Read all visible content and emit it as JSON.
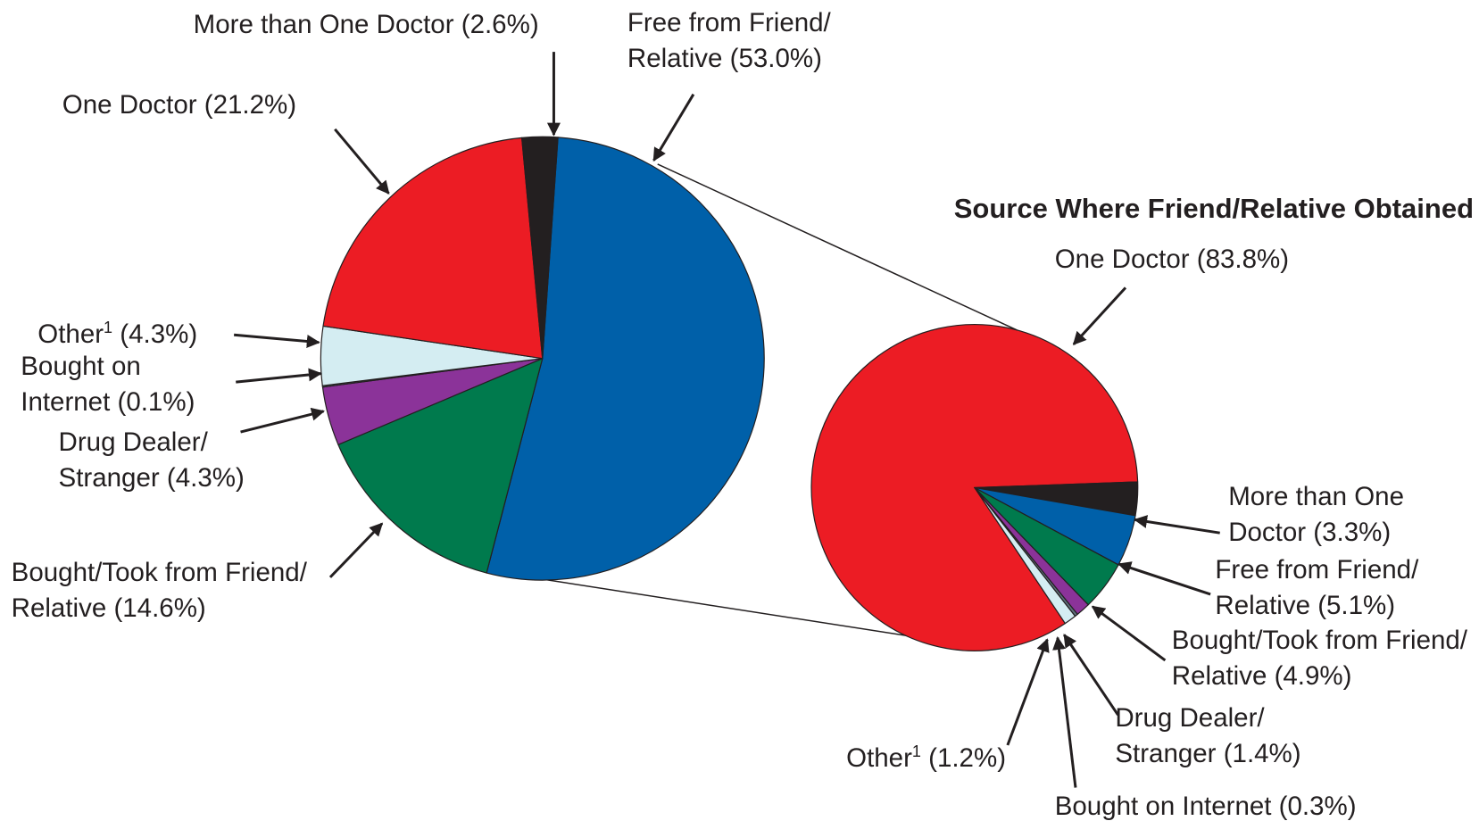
{
  "chart_data": [
    {
      "type": "pie",
      "categories": [
        "Free from Friend/Relative",
        "Bought/Took from Friend/Relative",
        "Drug Dealer/Stranger",
        "Bought on Internet",
        "Other",
        "One Doctor",
        "More than One Doctor"
      ],
      "category_notes": [
        null,
        null,
        null,
        null,
        "1",
        null,
        null
      ],
      "values": [
        53.0,
        14.6,
        4.3,
        0.1,
        4.3,
        21.2,
        2.6
      ],
      "value_labels": [
        "(53.0%)",
        "(14.6%)",
        "(4.3%)",
        "(0.1%)",
        "(4.3%)",
        "(21.2%)",
        "(2.6%)"
      ],
      "colors": [
        "#0060a9",
        "#007a4d",
        "#8b3399",
        "#5c6f7a",
        "#d4edf2",
        "#ec1c24",
        "#231f20"
      ]
    },
    {
      "type": "pie",
      "title": "Source Where Friend/Relative Obtained",
      "categories": [
        "One Doctor",
        "More than One Doctor",
        "Free from Friend/Relative",
        "Bought/Took from Friend/Relative",
        "Drug Dealer/Stranger",
        "Bought on Internet",
        "Other"
      ],
      "category_notes": [
        null,
        null,
        null,
        null,
        null,
        null,
        "1"
      ],
      "values": [
        83.8,
        3.3,
        5.1,
        4.9,
        1.4,
        0.3,
        1.2
      ],
      "value_labels": [
        "(83.8%)",
        "(3.3%)",
        "(5.1%)",
        "(4.9%)",
        "(1.4%)",
        "(0.3%)",
        "(1.2%)"
      ],
      "colors": [
        "#ec1c24",
        "#231f20",
        "#0060a9",
        "#007a4d",
        "#8b3399",
        "#5c6f7a",
        "#d4edf2"
      ]
    }
  ]
}
